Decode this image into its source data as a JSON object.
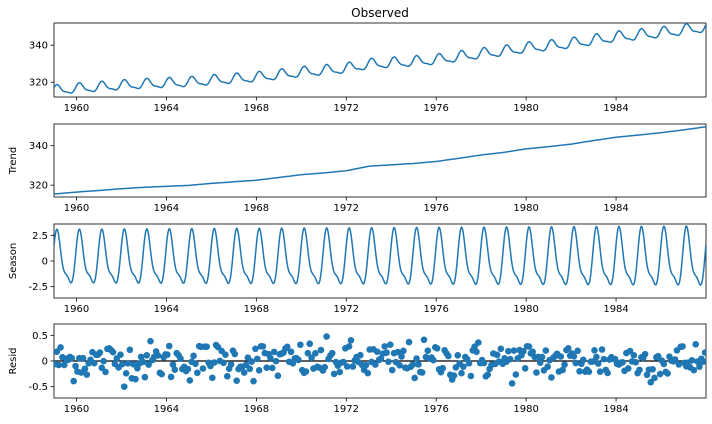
{
  "chart_data": [
    {
      "type": "line",
      "title": "Observed",
      "ylabel": "",
      "xlim": [
        1959.0,
        1988.0
      ],
      "ylim": [
        312,
        352
      ],
      "xticks": [
        1960,
        1964,
        1968,
        1972,
        1976,
        1980,
        1984
      ],
      "yticks": [
        320,
        340
      ],
      "grid": false,
      "series": [
        {
          "color": "#1f77b4",
          "x": [
            1959.0,
            1960.0,
            1961.0,
            1962.0,
            1963.0,
            1964.0,
            1965.0,
            1966.0,
            1967.0,
            1968.0,
            1969.0,
            1970.0,
            1971.0,
            1972.0,
            1973.0,
            1974.0,
            1975.0,
            1976.0,
            1977.0,
            1978.0,
            1979.0,
            1980.0,
            1981.0,
            1982.0,
            1983.0,
            1984.0,
            1985.0,
            1986.0,
            1987.0,
            1988.0
          ],
          "y": [
            315.5,
            316.5,
            317.3,
            318.2,
            318.9,
            319.4,
            319.9,
            320.9,
            321.7,
            322.5,
            323.9,
            325.3,
            326.2,
            327.3,
            329.6,
            330.3,
            331.0,
            332.0,
            333.6,
            335.3,
            336.6,
            338.4,
            339.5,
            340.8,
            342.6,
            344.3,
            345.4,
            346.6,
            348.0,
            349.6
          ]
        }
      ]
    },
    {
      "type": "line",
      "title": "",
      "ylabel": "Trend",
      "xlim": [
        1959.0,
        1988.0
      ],
      "ylim": [
        314,
        351
      ],
      "xticks": [
        1960,
        1964,
        1968,
        1972,
        1976,
        1980,
        1984
      ],
      "yticks": [
        320,
        340
      ],
      "grid": false,
      "series": [
        {
          "color": "#1f77b4",
          "x": [
            1959.0,
            1960.0,
            1961.0,
            1962.0,
            1963.0,
            1964.0,
            1965.0,
            1966.0,
            1967.0,
            1968.0,
            1969.0,
            1970.0,
            1971.0,
            1972.0,
            1973.0,
            1974.0,
            1975.0,
            1976.0,
            1977.0,
            1978.0,
            1979.0,
            1980.0,
            1981.0,
            1982.0,
            1983.0,
            1984.0,
            1985.0,
            1986.0,
            1987.0,
            1988.0
          ],
          "y": [
            315.5,
            316.5,
            317.3,
            318.2,
            318.9,
            319.4,
            319.9,
            320.9,
            321.7,
            322.5,
            323.9,
            325.3,
            326.2,
            327.3,
            329.6,
            330.3,
            331.0,
            332.0,
            333.6,
            335.3,
            336.6,
            338.4,
            339.5,
            340.8,
            342.6,
            344.3,
            345.4,
            346.6,
            348.0,
            349.6
          ]
        }
      ]
    },
    {
      "type": "line",
      "title": "",
      "ylabel": "Season",
      "xlim": [
        1959.0,
        1988.0
      ],
      "ylim": [
        -3.6,
        3.6
      ],
      "xticks": [
        1960,
        1964,
        1968,
        1972,
        1976,
        1980,
        1984
      ],
      "yticks": [
        2.5,
        0.0,
        -2.5
      ],
      "grid": false,
      "period_years": 1.0,
      "amplitude_growth": [
        2.9,
        3.2
      ],
      "series": [
        {
          "color": "#1f77b4"
        }
      ]
    },
    {
      "type": "scatter",
      "title": "",
      "ylabel": "Resid",
      "xlim": [
        1959.0,
        1988.0
      ],
      "ylim": [
        -0.72,
        0.72
      ],
      "xticks": [
        1960,
        1964,
        1968,
        1972,
        1976,
        1980,
        1984
      ],
      "yticks": [
        0.5,
        0.0,
        -0.5
      ],
      "grid": false,
      "zero_line": true,
      "series": [
        {
          "color": "#1f77b4"
        }
      ]
    }
  ]
}
